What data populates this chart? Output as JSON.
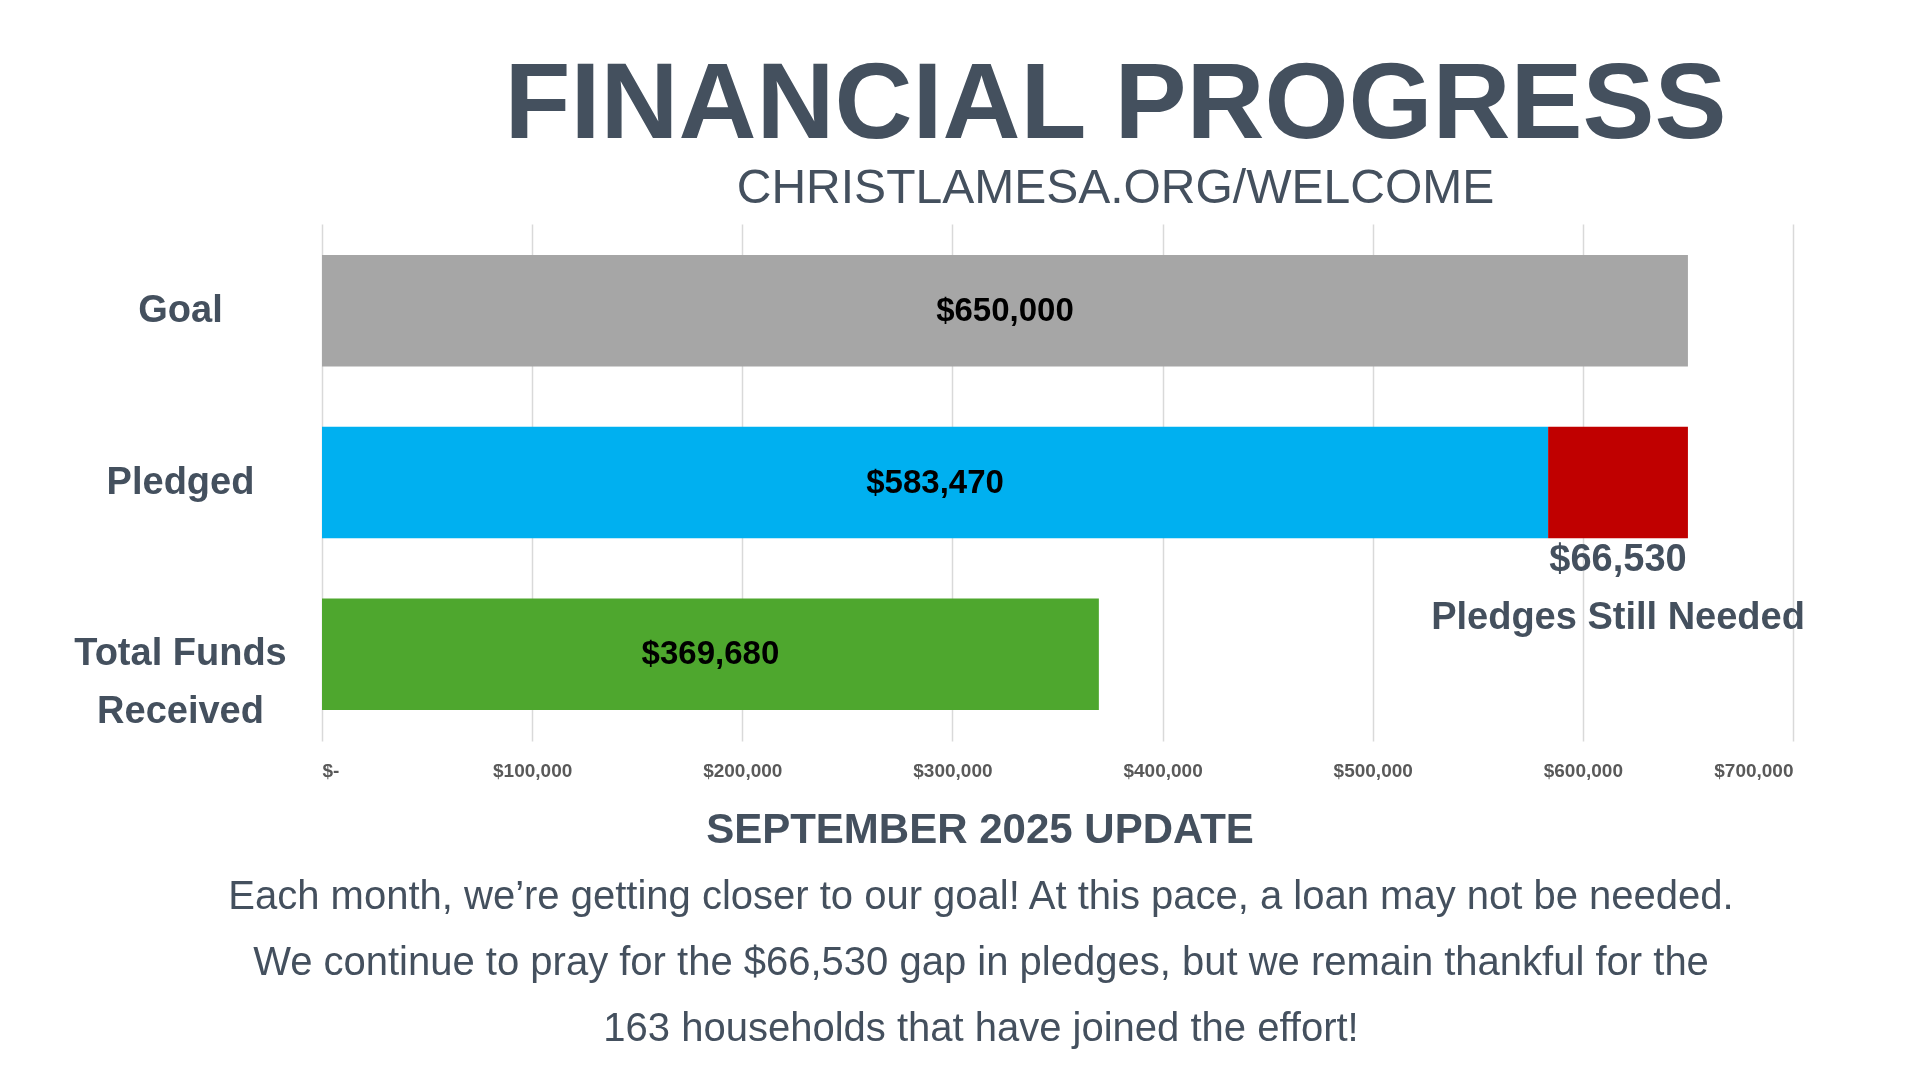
{
  "chart_data": {
    "type": "bar",
    "orientation": "horizontal",
    "stacked": true,
    "title": "FINANCIAL PROGRESS",
    "subtitle": "CHRISTLAMESA.ORG/WELCOME",
    "categories": [
      "Goal",
      "Pledged",
      "Total Funds Received"
    ],
    "series": [
      {
        "colors": [
          "#a6a6a6",
          "#00b0f0",
          "#4ea72e"
        ],
        "values": [
          650000,
          583470,
          369680
        ],
        "value_labels": [
          "$650,000",
          "$583,470",
          "$369,680"
        ]
      },
      {
        "name": "Pledges Still Needed",
        "color": "#c00000",
        "values": [
          null,
          66530,
          null
        ],
        "value_labels": [
          null,
          "$66,530",
          null
        ]
      }
    ],
    "xlim": [
      0,
      700000
    ],
    "xticks": [
      {
        "value": 0,
        "label": "$-"
      },
      {
        "value": 100000,
        "label": "$100,000"
      },
      {
        "value": 200000,
        "label": "$200,000"
      },
      {
        "value": 300000,
        "label": "$300,000"
      },
      {
        "value": 400000,
        "label": "$400,000"
      },
      {
        "value": 500000,
        "label": "$500,000"
      },
      {
        "value": 600000,
        "label": "$600,000"
      },
      {
        "value": 700000,
        "label": "$700,000"
      }
    ],
    "grid": "x",
    "annotations": [
      "SEPTEMBER 2025 UPDATE",
      "Each month, we’re getting closer to our goal! At this pace, a loan may not be needed. We continue to pray for the $66,530 gap in pledges, but we remain thankful for the 163 households that have joined the effort!"
    ]
  }
}
